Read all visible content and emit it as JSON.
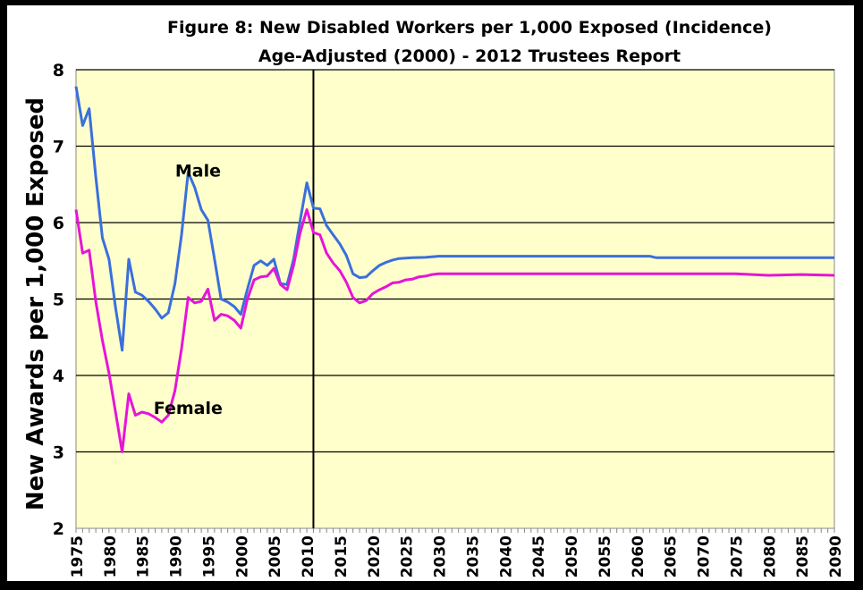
{
  "chart_data": {
    "type": "line",
    "title": "Figure 8: New Disabled Workers per 1,000 Exposed (Incidence)",
    "subtitle": "Age-Adjusted (2000)  - 2012 Trustees Report",
    "xlabel": "",
    "ylabel": "New Awards per 1,000 Exposed",
    "xlim": [
      1975,
      2090
    ],
    "ylim": [
      2,
      8
    ],
    "y_ticks": [
      "2",
      "3",
      "4",
      "5",
      "6",
      "7",
      "8"
    ],
    "x_ticks": [
      "1975",
      "1980",
      "1985",
      "1990",
      "1995",
      "2000",
      "2005",
      "2010",
      "2015",
      "2020",
      "2025",
      "2030",
      "2035",
      "2040",
      "2045",
      "2050",
      "2055",
      "2060",
      "2065",
      "2070",
      "2075",
      "2080",
      "2085",
      "2090"
    ],
    "grid": "horizontal",
    "reference_line_year": 2011,
    "background": "#ffffcc",
    "series": [
      {
        "name": "Male",
        "color": "#3a6fdc",
        "x": [
          1975,
          1976,
          1977,
          1978,
          1979,
          1980,
          1981,
          1982,
          1983,
          1984,
          1985,
          1986,
          1987,
          1988,
          1989,
          1990,
          1991,
          1992,
          1993,
          1994,
          1995,
          1996,
          1997,
          1998,
          1999,
          2000,
          2001,
          2002,
          2003,
          2004,
          2005,
          2006,
          2007,
          2008,
          2009,
          2010,
          2011,
          2012,
          2013,
          2014,
          2015,
          2016,
          2017,
          2018,
          2019,
          2020,
          2021,
          2022,
          2023,
          2024,
          2025,
          2026,
          2028,
          2030,
          2045,
          2062,
          2063,
          2090
        ],
        "values": [
          7.78,
          7.27,
          7.49,
          6.6,
          5.8,
          5.52,
          4.89,
          4.33,
          5.52,
          5.09,
          5.05,
          4.97,
          4.87,
          4.75,
          4.82,
          5.2,
          5.84,
          6.66,
          6.46,
          6.17,
          6.03,
          5.52,
          5.0,
          4.96,
          4.9,
          4.8,
          5.13,
          5.44,
          5.5,
          5.44,
          5.52,
          5.2,
          5.19,
          5.52,
          6.03,
          6.52,
          6.19,
          6.18,
          5.96,
          5.84,
          5.72,
          5.57,
          5.33,
          5.28,
          5.29,
          5.37,
          5.44,
          5.48,
          5.51,
          5.53,
          5.535,
          5.54,
          5.545,
          5.56,
          5.56,
          5.56,
          5.54,
          5.54
        ]
      },
      {
        "name": "Female",
        "color": "#e614d8",
        "x": [
          1975,
          1976,
          1977,
          1978,
          1979,
          1980,
          1981,
          1982,
          1983,
          1984,
          1985,
          1986,
          1987,
          1988,
          1989,
          1990,
          1991,
          1992,
          1993,
          1994,
          1995,
          1996,
          1997,
          1998,
          1999,
          2000,
          2001,
          2002,
          2003,
          2004,
          2005,
          2006,
          2007,
          2008,
          2009,
          2010,
          2011,
          2012,
          2013,
          2014,
          2015,
          2016,
          2017,
          2018,
          2019,
          2020,
          2021,
          2022,
          2023,
          2024,
          2025,
          2026,
          2027,
          2028,
          2029,
          2030,
          2075,
          2080,
          2085,
          2090
        ],
        "values": [
          6.17,
          5.6,
          5.64,
          4.97,
          4.46,
          4.03,
          3.52,
          3.0,
          3.76,
          3.48,
          3.52,
          3.5,
          3.45,
          3.39,
          3.48,
          3.8,
          4.35,
          5.02,
          4.95,
          4.97,
          5.13,
          4.72,
          4.8,
          4.78,
          4.72,
          4.62,
          5.0,
          5.25,
          5.29,
          5.3,
          5.4,
          5.19,
          5.12,
          5.44,
          5.87,
          6.17,
          5.87,
          5.84,
          5.6,
          5.47,
          5.37,
          5.22,
          5.02,
          4.95,
          4.98,
          5.07,
          5.12,
          5.16,
          5.21,
          5.22,
          5.25,
          5.26,
          5.29,
          5.3,
          5.32,
          5.33,
          5.33,
          5.31,
          5.32,
          5.31
        ]
      }
    ],
    "annotations": [
      {
        "text": "Male",
        "x": 1993.5,
        "y": 6.6
      },
      {
        "text": "Female",
        "x": 1992,
        "y": 3.5
      }
    ]
  }
}
